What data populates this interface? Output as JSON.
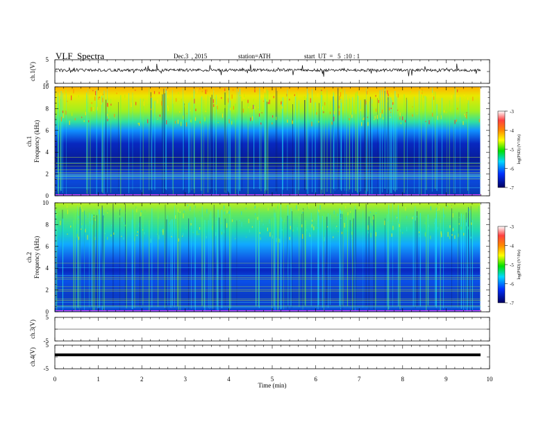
{
  "header": {
    "title": "VLF  Spectra",
    "date": "Dec.3  , 2015",
    "station": "station=ATH",
    "start": "start  UT  =   5  :10 : 1"
  },
  "chart_data": [
    {
      "type": "line",
      "panel": "ch1-waveform",
      "ylabel": "ch.1(V)",
      "yticks": [
        "5",
        "-5"
      ],
      "ylim": [
        -5,
        5
      ],
      "description_note": ""
    },
    {
      "type": "heatmap",
      "panel": "ch1-spectrogram",
      "ylabel_channel": "ch.1",
      "ylabel": "Frequency  (kHz)",
      "yticks": [
        "10",
        "8",
        "6",
        "4",
        "2",
        "0"
      ],
      "ylim": [
        0,
        10
      ],
      "colorbar": {
        "label": "log(PSD) (V²/Hz)",
        "ticks": [
          "-3",
          "-4",
          "-5",
          "-6",
          "-7"
        ],
        "range": [
          -7,
          -3
        ]
      }
    },
    {
      "type": "heatmap",
      "panel": "ch2-spectrogram",
      "ylabel_channel": "ch.2",
      "ylabel": "Frequency  (kHz)",
      "yticks": [
        "10",
        "8",
        "6",
        "4",
        "2",
        "0"
      ],
      "ylim": [
        0,
        10
      ],
      "colorbar": {
        "label": "log(PSD) (V²/Hz)",
        "ticks": [
          "-3",
          "-4",
          "-5",
          "-6",
          "-7"
        ],
        "range": [
          -7,
          -3
        ]
      }
    },
    {
      "type": "line",
      "panel": "ch3-waveform",
      "ylabel": "ch.3(V)",
      "yticks": [
        "5",
        "-5"
      ],
      "ylim": [
        -5,
        5
      ]
    },
    {
      "type": "line",
      "panel": "ch4-waveform",
      "ylabel": "ch.4(V)",
      "yticks": [
        "5",
        "-5"
      ],
      "ylim": [
        -5,
        5
      ]
    }
  ],
  "xaxis": {
    "label": "Time  (min)",
    "ticks": [
      "0",
      "1",
      "2",
      "3",
      "4",
      "5",
      "6",
      "7",
      "8",
      "9",
      "10"
    ],
    "xlim": [
      0,
      10
    ],
    "data_end": 9.8
  }
}
